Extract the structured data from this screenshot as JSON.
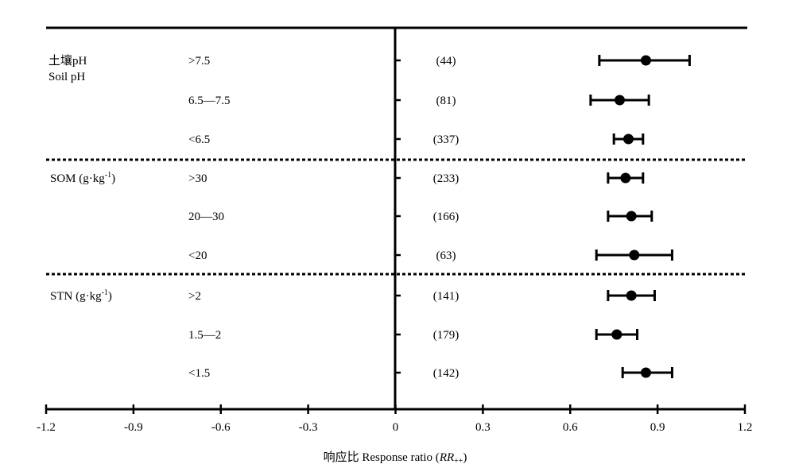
{
  "chart_data": {
    "type": "forest",
    "xlabel_cn": "响应比",
    "xlabel_en": "Response ratio (",
    "xlabel_rr": "RR",
    "xlabel_sub": "++",
    "xlabel_close": ")",
    "xlim": [
      -1.2,
      1.2
    ],
    "xticks": [
      "-1.2",
      "-0.9",
      "-0.6",
      "-0.3",
      "0",
      "0.3",
      "0.6",
      "0.9",
      "1.2"
    ],
    "grid": false,
    "groups": [
      {
        "label_cn": "土壤pH",
        "label_en": "Soil pH",
        "label_main": "",
        "label_sup": "",
        "label_close": "",
        "rows": [
          {
            "category": ">7.5",
            "n": "(44)",
            "mean": 0.86,
            "lower": 0.7,
            "upper": 1.01
          },
          {
            "category": "6.5—7.5",
            "n": "(81)",
            "mean": 0.77,
            "lower": 0.67,
            "upper": 0.87
          },
          {
            "category": "<6.5",
            "n": "(337)",
            "mean": 0.8,
            "lower": 0.75,
            "upper": 0.85
          }
        ]
      },
      {
        "label_cn": "",
        "label_en": "",
        "label_main": "SOM (g·kg",
        "label_sup": "-1",
        "label_close": ")",
        "rows": [
          {
            "category": ">30",
            "n": "(233)",
            "mean": 0.79,
            "lower": 0.73,
            "upper": 0.85
          },
          {
            "category": "20—30",
            "n": "(166)",
            "mean": 0.81,
            "lower": 0.73,
            "upper": 0.88
          },
          {
            "category": "<20",
            "n": "(63)",
            "mean": 0.82,
            "lower": 0.69,
            "upper": 0.95
          }
        ]
      },
      {
        "label_cn": "",
        "label_en": "",
        "label_main": "STN (g·kg",
        "label_sup": "-1",
        "label_close": ")",
        "rows": [
          {
            "category": ">2",
            "n": "(141)",
            "mean": 0.81,
            "lower": 0.73,
            "upper": 0.89
          },
          {
            "category": "1.5—2",
            "n": "(179)",
            "mean": 0.76,
            "lower": 0.69,
            "upper": 0.83
          },
          {
            "category": "<1.5",
            "n": "(142)",
            "mean": 0.86,
            "lower": 0.78,
            "upper": 0.95
          }
        ]
      }
    ]
  }
}
